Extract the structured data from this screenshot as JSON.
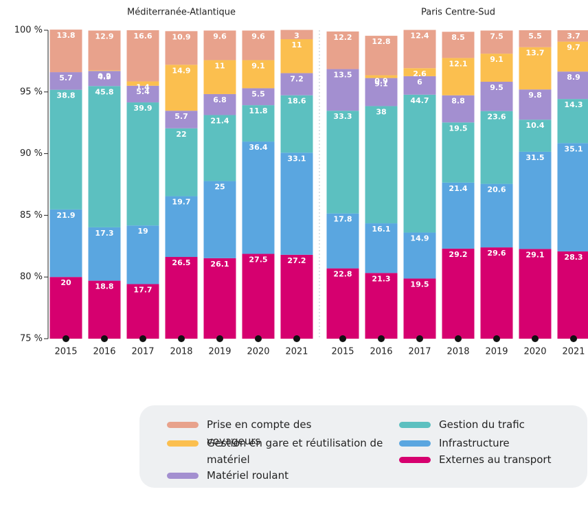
{
  "chart_data": {
    "type": "bar",
    "stacked": true,
    "ylim": [
      0,
      100
    ],
    "yticks": [
      {
        "value": 0,
        "label": "75 %"
      },
      {
        "value": 20,
        "label": "80 %"
      },
      {
        "value": 40,
        "label": "85 %"
      },
      {
        "value": 60,
        "label": "90 %"
      },
      {
        "value": 80,
        "label": "95 %"
      },
      {
        "value": 100,
        "label": "100 %"
      }
    ],
    "series": [
      {
        "name": "Externes au transport",
        "color": "#d6006f"
      },
      {
        "name": "Infrastructure",
        "color": "#5aa6e0"
      },
      {
        "name": "Gestion du trafic",
        "color": "#5cc0c0"
      },
      {
        "name": "Matériel roulant",
        "color": "#a38fd0"
      },
      {
        "name": "Gestion en gare et réutilisation de matériel",
        "color": "#fbbf4f"
      },
      {
        "name": "Prise en compte des voyageurs",
        "color": "#e8a28c"
      }
    ],
    "panels": [
      {
        "title": "Méditerranée-Atlantique",
        "categories": [
          "2015",
          "2016",
          "2017",
          "2018",
          "2019",
          "2020",
          "2021"
        ],
        "values": [
          [
            20,
            18.8,
            17.7,
            26.5,
            26.1,
            27.5,
            27.2
          ],
          [
            21.9,
            17.3,
            19,
            19.7,
            25,
            36.4,
            33.1
          ],
          [
            38.8,
            45.8,
            39.9,
            22,
            21.4,
            11.8,
            18.6
          ],
          [
            5.7,
            4.9,
            5.4,
            5.7,
            6.8,
            5.5,
            7.2
          ],
          [
            null,
            0.2,
            1.4,
            14.9,
            11,
            9.1,
            11
          ],
          [
            13.8,
            12.9,
            16.6,
            10.9,
            9.6,
            9.6,
            3
          ]
        ]
      },
      {
        "title": "Paris Centre-Sud",
        "categories": [
          "2015",
          "2016",
          "2017",
          "2018",
          "2019",
          "2020",
          "2021"
        ],
        "values": [
          [
            22.8,
            21.3,
            19.5,
            29.2,
            29.6,
            29.1,
            28.3
          ],
          [
            17.8,
            16.1,
            14.9,
            21.4,
            20.6,
            31.5,
            35.1
          ],
          [
            33.3,
            38,
            44.7,
            19.5,
            23.6,
            10.4,
            14.3
          ],
          [
            13.5,
            9.1,
            6,
            8.8,
            9.5,
            9.8,
            8.9
          ],
          [
            null,
            0.9,
            2.6,
            12.1,
            9.1,
            13.7,
            9.7
          ],
          [
            12.2,
            12.8,
            12.4,
            8.5,
            7.5,
            5.5,
            3.7
          ]
        ]
      }
    ]
  }
}
